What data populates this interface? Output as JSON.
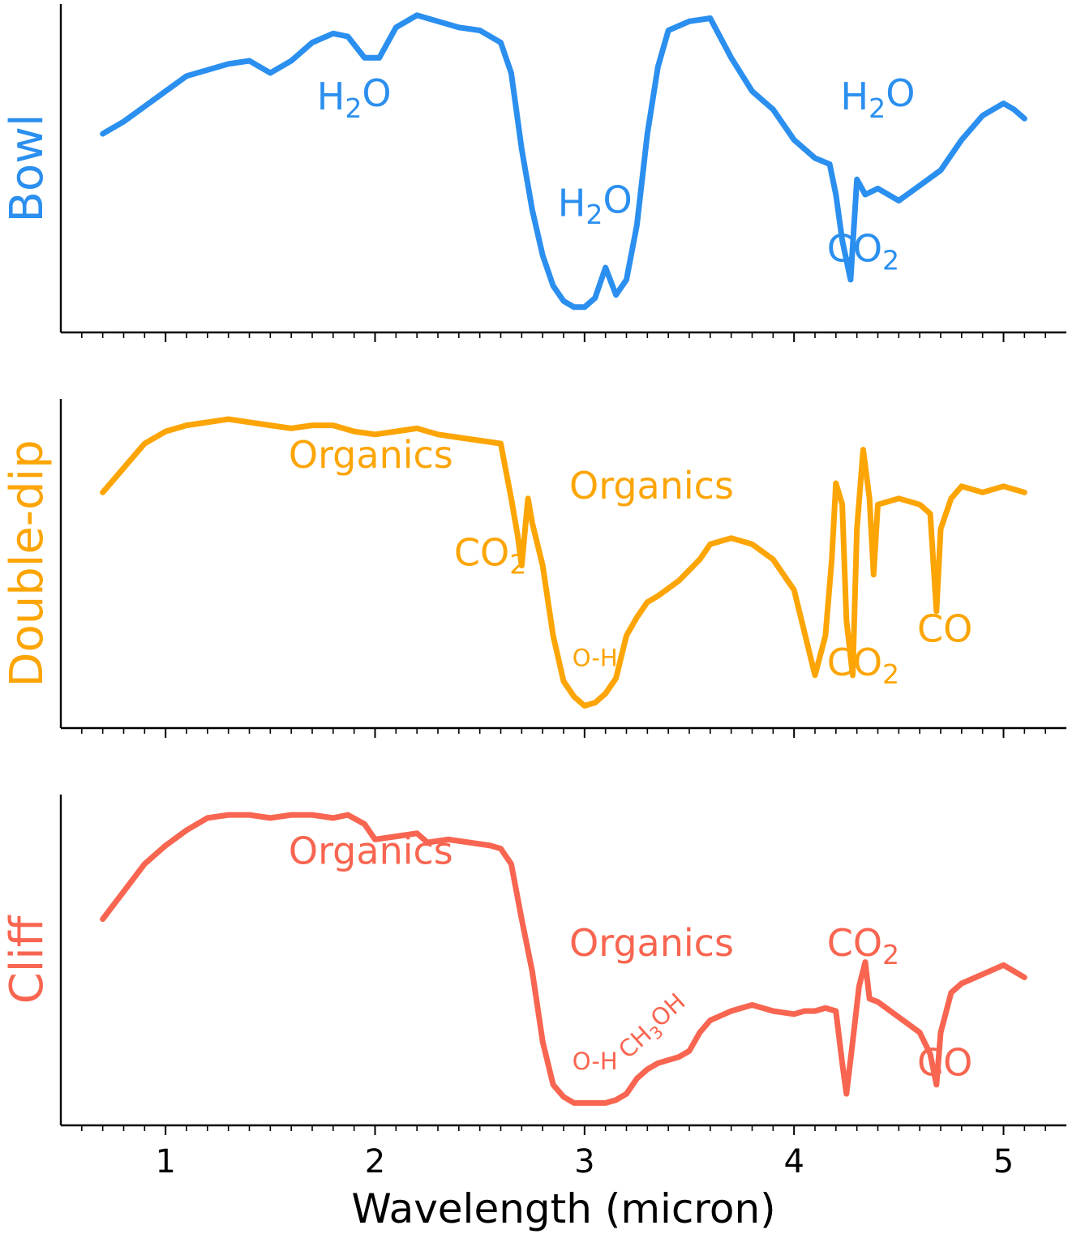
{
  "chart_data": [
    {
      "type": "line",
      "title": "",
      "ylabel": "Bowl",
      "xlabel": "",
      "xlim": [
        0.5,
        5.3
      ],
      "ylim": [
        0,
        1
      ],
      "color": "#2b8fef",
      "series": [
        {
          "name": "Bowl",
          "x": [
            0.7,
            0.8,
            0.9,
            1.0,
            1.1,
            1.2,
            1.3,
            1.4,
            1.5,
            1.6,
            1.7,
            1.8,
            1.87,
            1.95,
            2.02,
            2.1,
            2.2,
            2.3,
            2.4,
            2.5,
            2.6,
            2.65,
            2.7,
            2.75,
            2.8,
            2.85,
            2.9,
            2.95,
            3.0,
            3.05,
            3.1,
            3.15,
            3.2,
            3.25,
            3.3,
            3.35,
            3.4,
            3.5,
            3.6,
            3.7,
            3.8,
            3.9,
            4.0,
            4.1,
            4.17,
            4.2,
            4.23,
            4.27,
            4.3,
            4.34,
            4.4,
            4.5,
            4.6,
            4.7,
            4.8,
            4.9,
            5.0,
            5.05,
            5.1
          ],
          "values": [
            0.6,
            0.64,
            0.69,
            0.74,
            0.79,
            0.81,
            0.83,
            0.84,
            0.8,
            0.84,
            0.9,
            0.93,
            0.92,
            0.85,
            0.85,
            0.95,
            0.99,
            0.97,
            0.95,
            0.94,
            0.9,
            0.8,
            0.55,
            0.35,
            0.2,
            0.1,
            0.05,
            0.03,
            0.03,
            0.06,
            0.16,
            0.07,
            0.12,
            0.3,
            0.6,
            0.82,
            0.94,
            0.97,
            0.98,
            0.85,
            0.74,
            0.68,
            0.58,
            0.52,
            0.5,
            0.4,
            0.25,
            0.12,
            0.45,
            0.4,
            0.42,
            0.38,
            0.43,
            0.48,
            0.58,
            0.66,
            0.7,
            0.68,
            0.65
          ]
        }
      ],
      "annotations": [
        {
          "text": "H",
          "sub": "2",
          "tail": "O",
          "x": 1.9,
          "y": 0.68
        },
        {
          "text": "H",
          "sub": "2",
          "tail": "O",
          "x": 3.05,
          "y": 0.33
        },
        {
          "text": "H",
          "sub": "2",
          "tail": "O",
          "x": 4.4,
          "y": 0.68
        },
        {
          "text": "CO",
          "sub": "2",
          "tail": "",
          "x": 4.33,
          "y": 0.18
        }
      ]
    },
    {
      "type": "line",
      "title": "",
      "ylabel": "Double-dip",
      "xlabel": "",
      "xlim": [
        0.5,
        5.3
      ],
      "ylim": [
        0,
        1
      ],
      "color": "#fca505",
      "series": [
        {
          "name": "Double-dip",
          "x": [
            0.7,
            0.8,
            0.9,
            1.0,
            1.1,
            1.2,
            1.3,
            1.4,
            1.5,
            1.6,
            1.7,
            1.8,
            1.9,
            2.0,
            2.1,
            2.2,
            2.3,
            2.4,
            2.5,
            2.6,
            2.65,
            2.68,
            2.7,
            2.73,
            2.75,
            2.8,
            2.85,
            2.9,
            2.95,
            3.0,
            3.05,
            3.1,
            3.15,
            3.2,
            3.25,
            3.3,
            3.35,
            3.45,
            3.55,
            3.6,
            3.7,
            3.8,
            3.9,
            4.0,
            4.05,
            4.1,
            4.15,
            4.18,
            4.2,
            4.23,
            4.25,
            4.28,
            4.3,
            4.33,
            4.36,
            4.38,
            4.4,
            4.5,
            4.6,
            4.65,
            4.68,
            4.7,
            4.75,
            4.8,
            4.9,
            5.0,
            5.1
          ],
          "values": [
            0.72,
            0.8,
            0.88,
            0.92,
            0.94,
            0.95,
            0.96,
            0.95,
            0.94,
            0.93,
            0.94,
            0.94,
            0.92,
            0.91,
            0.92,
            0.93,
            0.91,
            0.9,
            0.89,
            0.88,
            0.7,
            0.58,
            0.48,
            0.7,
            0.62,
            0.48,
            0.25,
            0.1,
            0.05,
            0.02,
            0.03,
            0.06,
            0.11,
            0.25,
            0.31,
            0.36,
            0.38,
            0.43,
            0.5,
            0.55,
            0.57,
            0.55,
            0.5,
            0.4,
            0.26,
            0.12,
            0.25,
            0.5,
            0.75,
            0.68,
            0.3,
            0.12,
            0.6,
            0.86,
            0.7,
            0.45,
            0.68,
            0.7,
            0.68,
            0.65,
            0.33,
            0.6,
            0.7,
            0.74,
            0.72,
            0.74,
            0.72
          ]
        }
      ],
      "annotations": [
        {
          "text": "Organics",
          "sub": "",
          "tail": "",
          "x": 1.98,
          "y": 0.8
        },
        {
          "text": "Organics",
          "sub": "",
          "tail": "",
          "x": 3.32,
          "y": 0.7
        },
        {
          "text": "CO",
          "sub": "2",
          "tail": "",
          "x": 2.55,
          "y": 0.48
        },
        {
          "text": "O-H",
          "sub": "",
          "tail": "",
          "x": 3.05,
          "y": 0.15,
          "small": true
        },
        {
          "text": "CO",
          "sub": "2",
          "tail": "",
          "x": 4.33,
          "y": 0.12
        },
        {
          "text": "CO",
          "sub": "",
          "tail": "",
          "x": 4.72,
          "y": 0.23
        }
      ]
    },
    {
      "type": "line",
      "title": "",
      "ylabel": "Cliff",
      "xlabel": "Wavelength (micron)",
      "xlim": [
        0.5,
        5.3
      ],
      "ylim": [
        0,
        1
      ],
      "xticks": [
        1,
        2,
        3,
        4,
        5
      ],
      "color": "#f86550",
      "series": [
        {
          "name": "Cliff",
          "x": [
            0.7,
            0.8,
            0.9,
            1.0,
            1.1,
            1.2,
            1.3,
            1.4,
            1.5,
            1.6,
            1.7,
            1.8,
            1.87,
            1.95,
            2.0,
            2.1,
            2.2,
            2.25,
            2.35,
            2.45,
            2.55,
            2.6,
            2.65,
            2.7,
            2.75,
            2.8,
            2.85,
            2.9,
            2.95,
            3.0,
            3.05,
            3.1,
            3.15,
            3.2,
            3.25,
            3.3,
            3.35,
            3.45,
            3.5,
            3.55,
            3.6,
            3.7,
            3.8,
            3.9,
            4.0,
            4.05,
            4.1,
            4.15,
            4.2,
            4.23,
            4.25,
            4.28,
            4.31,
            4.34,
            4.36,
            4.4,
            4.5,
            4.6,
            4.65,
            4.68,
            4.7,
            4.75,
            4.8,
            4.9,
            5.0,
            5.1
          ],
          "values": [
            0.62,
            0.71,
            0.8,
            0.86,
            0.91,
            0.95,
            0.96,
            0.96,
            0.95,
            0.96,
            0.96,
            0.95,
            0.96,
            0.93,
            0.88,
            0.89,
            0.9,
            0.87,
            0.88,
            0.87,
            0.86,
            0.85,
            0.8,
            0.62,
            0.45,
            0.22,
            0.08,
            0.04,
            0.02,
            0.02,
            0.02,
            0.02,
            0.03,
            0.05,
            0.1,
            0.13,
            0.15,
            0.17,
            0.19,
            0.25,
            0.29,
            0.32,
            0.34,
            0.32,
            0.31,
            0.32,
            0.32,
            0.33,
            0.32,
            0.15,
            0.05,
            0.22,
            0.4,
            0.48,
            0.36,
            0.35,
            0.3,
            0.25,
            0.18,
            0.08,
            0.25,
            0.38,
            0.41,
            0.44,
            0.47,
            0.43
          ]
        }
      ],
      "annotations": [
        {
          "text": "Organics",
          "sub": "",
          "tail": "",
          "x": 1.98,
          "y": 0.8
        },
        {
          "text": "Organics",
          "sub": "",
          "tail": "",
          "x": 3.32,
          "y": 0.5
        },
        {
          "text": "O-H",
          "sub": "",
          "tail": "",
          "x": 3.05,
          "y": 0.13,
          "small": true
        },
        {
          "text": "CH",
          "sub": "3",
          "tail": "OH",
          "x": 3.35,
          "y": 0.25,
          "small": true,
          "rotate": -42
        },
        {
          "text": "CO",
          "sub": "2",
          "tail": "",
          "x": 4.33,
          "y": 0.5
        },
        {
          "text": "CO",
          "sub": "",
          "tail": "",
          "x": 4.72,
          "y": 0.11
        }
      ]
    }
  ]
}
